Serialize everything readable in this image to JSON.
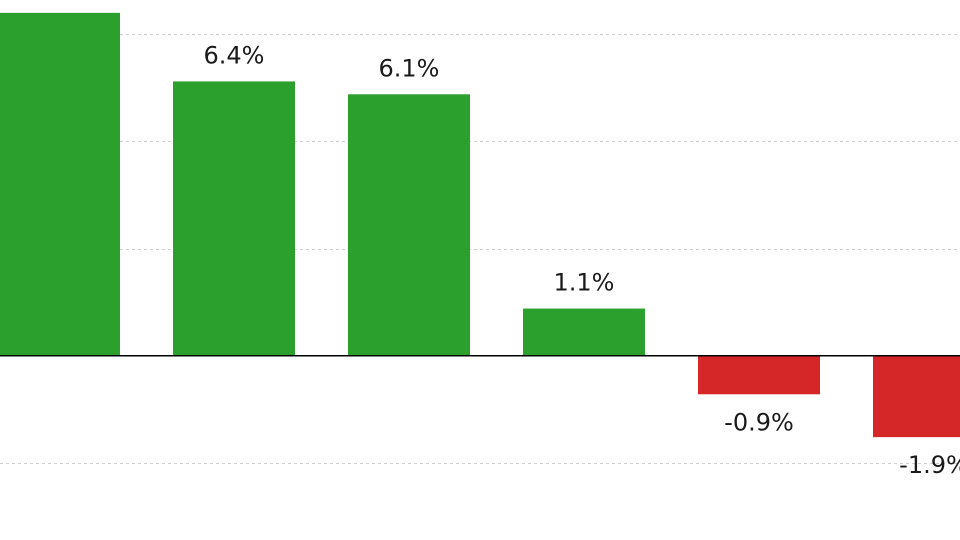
{
  "chart_data": {
    "type": "bar",
    "categories": [
      "",
      "",
      "",
      "",
      "",
      ""
    ],
    "values": [
      8.0,
      6.4,
      6.1,
      1.1,
      -0.9,
      -1.9
    ],
    "data_labels": [
      "",
      "6.4%",
      "6.1%",
      "1.1%",
      "-0.9%",
      "-1.9%"
    ],
    "ylim": [
      -4.3,
      8.3
    ],
    "ytick_values": [
      -2.5,
      0,
      2.5,
      5,
      7.5
    ],
    "grid": true,
    "colors": {
      "positive": "#2ca02c",
      "negative": "#d62728",
      "baseline": "#000000",
      "grid": "#d0d0d0"
    }
  }
}
